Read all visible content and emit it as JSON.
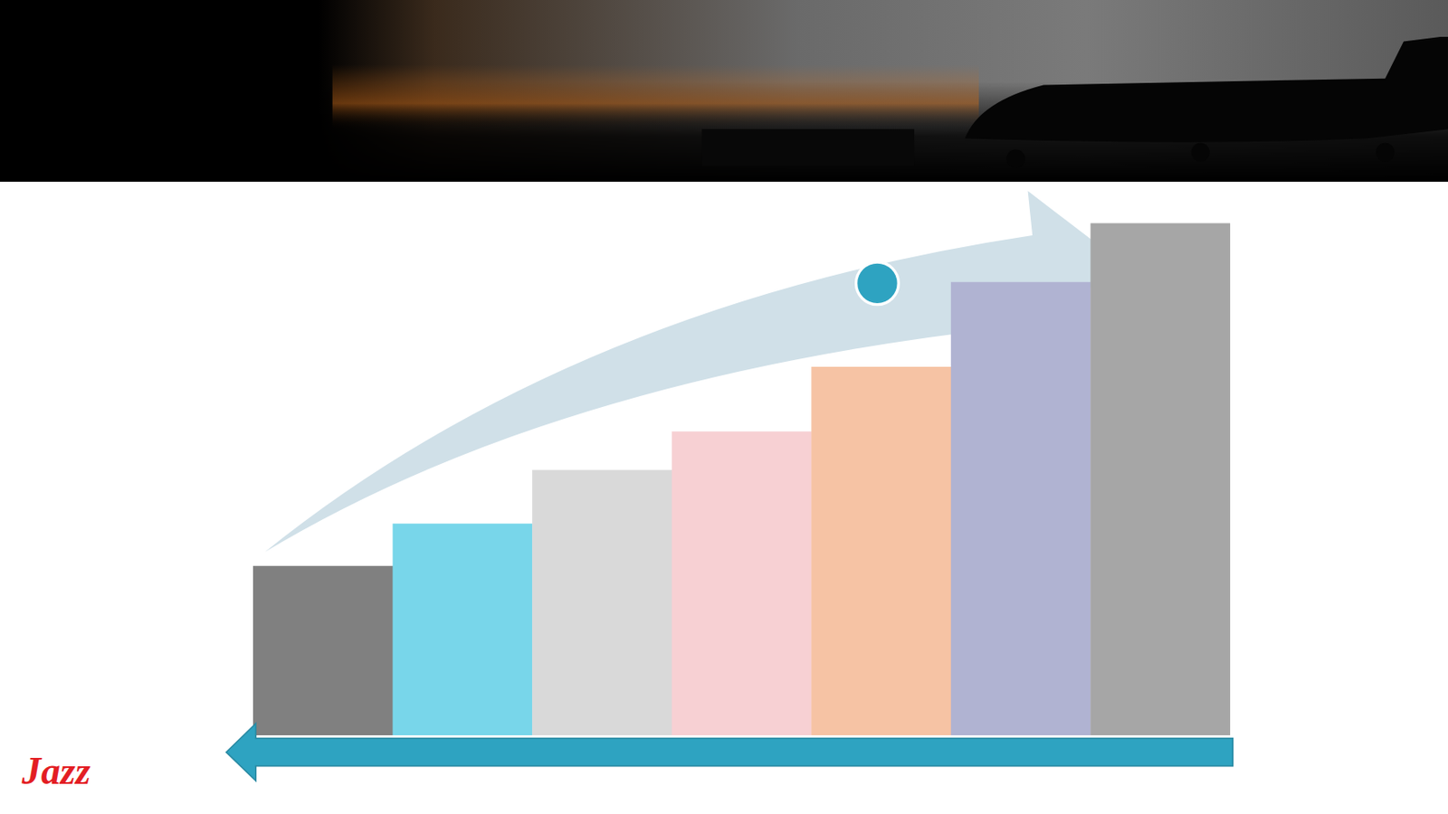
{
  "chart_data": {
    "type": "bar",
    "categories": [
      null,
      null,
      null,
      null,
      null,
      null,
      null
    ],
    "values": [
      184,
      230,
      288,
      330,
      400,
      492,
      556
    ],
    "colors": [
      "#808080",
      "#78d6ea",
      "#d9d9d9",
      "#f7d0d3",
      "#f6c3a4",
      "#b0b3d2",
      "#a6a6a6"
    ],
    "ylim": [
      0,
      560
    ],
    "tick_labels": false
  },
  "logo": {
    "text": "Jazz"
  }
}
